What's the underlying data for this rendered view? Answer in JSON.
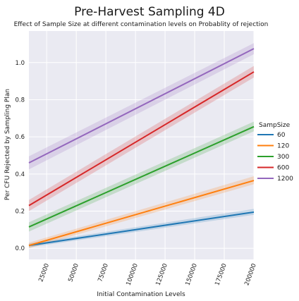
{
  "chart_data": {
    "type": "line",
    "title": "Pre-Harvest Sampling 4D",
    "subtitle": "Effect of Sample Size at different contamination levels on Probablity of rejection",
    "xlabel": "Initial Contamination Levels",
    "ylabel": "Per CFU Rejected by Sampling Plan",
    "xlim": [
      10000,
      200000
    ],
    "ylim": [
      -0.06,
      1.17
    ],
    "x_ticks": [
      25000,
      50000,
      75000,
      100000,
      125000,
      150000,
      175000,
      200000
    ],
    "y_ticks": [
      0.0,
      0.2,
      0.4,
      0.6,
      0.8,
      1.0
    ],
    "x_tick_labels": [
      "25000",
      "50000",
      "75000",
      "100000",
      "125000",
      "150000",
      "175000",
      "200000"
    ],
    "y_tick_labels": [
      "0.0",
      "0.2",
      "0.4",
      "0.6",
      "0.8",
      "1.0"
    ],
    "grid": true,
    "legend_title": "SampSize",
    "legend_position": "right",
    "x": [
      10000,
      200000
    ],
    "series": [
      {
        "name": "60",
        "color": "#1f77b4",
        "values": [
          0.015,
          0.195
        ],
        "ci_low": [
          0.005,
          0.18
        ],
        "ci_high": [
          0.025,
          0.212
        ]
      },
      {
        "name": "120",
        "color": "#ff7f0e",
        "values": [
          0.015,
          0.365
        ],
        "ci_low": [
          0.0,
          0.345
        ],
        "ci_high": [
          0.03,
          0.388
        ]
      },
      {
        "name": "300",
        "color": "#2ca02c",
        "values": [
          0.115,
          0.655
        ],
        "ci_low": [
          0.09,
          0.63
        ],
        "ci_high": [
          0.14,
          0.682
        ]
      },
      {
        "name": "600",
        "color": "#d62728",
        "values": [
          0.23,
          0.95
        ],
        "ci_low": [
          0.2,
          0.92
        ],
        "ci_high": [
          0.26,
          0.982
        ]
      },
      {
        "name": "1200",
        "color": "#9467bd",
        "values": [
          0.46,
          1.075
        ],
        "ci_low": [
          0.425,
          1.045
        ],
        "ci_high": [
          0.495,
          1.105
        ]
      }
    ]
  }
}
